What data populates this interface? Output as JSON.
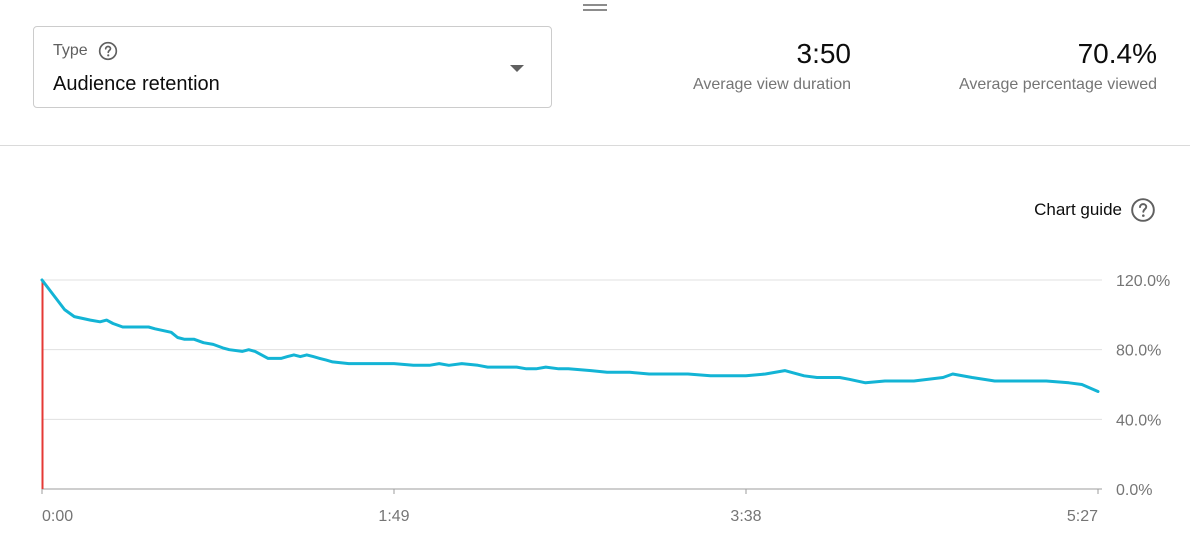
{
  "header": {
    "type_selector": {
      "label": "Type",
      "value": "Audience retention"
    },
    "metrics": [
      {
        "value": "3:50",
        "label": "Average view duration"
      },
      {
        "value": "70.4%",
        "label": "Average percentage viewed"
      }
    ]
  },
  "chart_guide": {
    "label": "Chart guide"
  },
  "icons": {
    "help": "help-circle-icon",
    "dropdown": "caret-down-icon",
    "drag": "drag-handle-icon"
  },
  "colors": {
    "line": "#13b4d5",
    "marker": "#e53935",
    "grid": "#e0e0e0",
    "axis": "#9e9e9e"
  },
  "chart_data": {
    "type": "line",
    "title": "",
    "xlabel": "",
    "ylabel": "",
    "x_tick_labels": [
      "0:00",
      "1:49",
      "3:38",
      "5:27"
    ],
    "y_tick_labels": [
      "120.0%",
      "80.0%",
      "40.0%",
      "0.0%"
    ],
    "ylim": [
      0,
      120
    ],
    "xlim_seconds": [
      0,
      327
    ],
    "grid": true,
    "series": [
      {
        "x_seconds": [
          0,
          7,
          10,
          15,
          18,
          20,
          22,
          25,
          28,
          33,
          35,
          40,
          42,
          44,
          47,
          50,
          53,
          56,
          58,
          62,
          64,
          66,
          70,
          74,
          76,
          78,
          80,
          82,
          84,
          86,
          88,
          90,
          95,
          100,
          109,
          115,
          120,
          123,
          126,
          130,
          135,
          138,
          144,
          147,
          150,
          153,
          156,
          160,
          163,
          170,
          175,
          178,
          182,
          188,
          193,
          200,
          207,
          213,
          218,
          224,
          230,
          236,
          240,
          247,
          250,
          255,
          261,
          270,
          279,
          282,
          288,
          295,
          302,
          305,
          311,
          318,
          322,
          327
        ],
        "values": [
          120,
          103,
          99,
          97,
          96,
          97,
          95,
          93,
          93,
          93,
          92,
          90,
          87,
          86,
          86,
          84,
          83,
          81,
          80,
          79,
          80,
          79,
          75,
          75,
          76,
          77,
          76,
          77,
          76,
          75,
          74,
          73,
          72,
          72,
          72,
          71,
          71,
          72,
          71,
          72,
          71,
          70,
          70,
          70,
          69,
          69,
          70,
          69,
          69,
          68,
          67,
          67,
          67,
          66,
          66,
          66,
          65,
          65,
          65,
          66,
          68,
          65,
          64,
          64,
          63,
          61,
          62,
          62,
          64,
          66,
          64,
          62,
          62,
          62,
          62,
          61,
          60,
          56
        ]
      }
    ]
  }
}
